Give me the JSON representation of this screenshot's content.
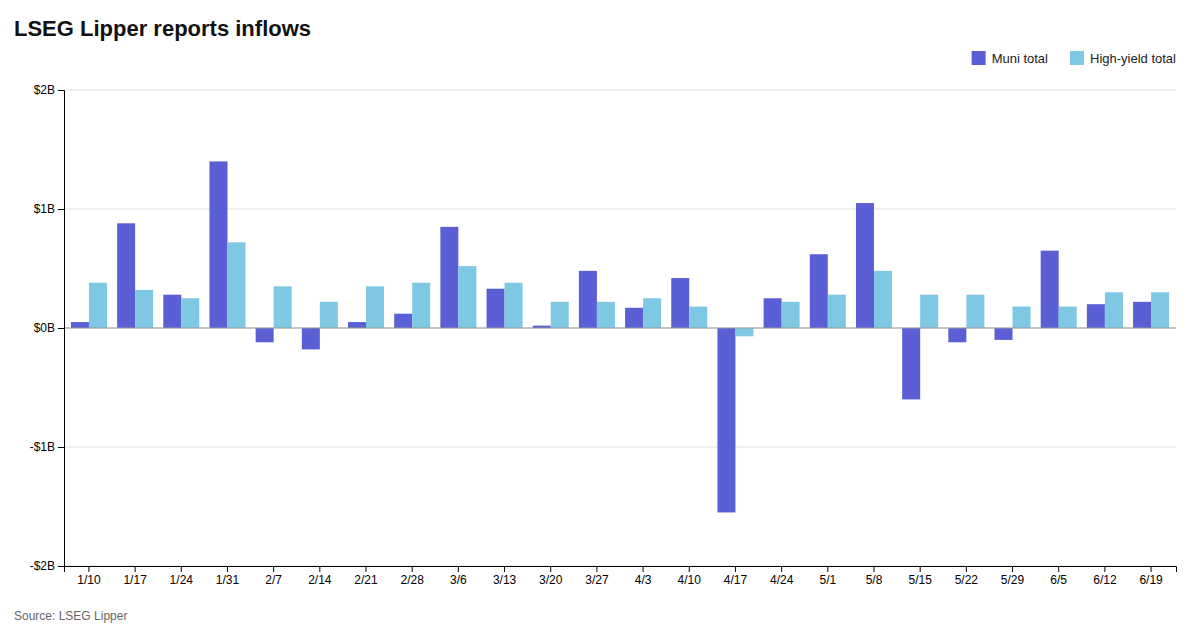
{
  "chart_data": {
    "type": "bar",
    "title": "LSEG Lipper reports inflows",
    "annotations": [
      "Source: LSEG Lipper"
    ],
    "categories": [
      "1/10",
      "1/17",
      "1/24",
      "1/31",
      "2/7",
      "2/14",
      "2/21",
      "2/28",
      "3/6",
      "3/13",
      "3/20",
      "3/27",
      "4/3",
      "4/10",
      "4/17",
      "4/24",
      "5/1",
      "5/8",
      "5/15",
      "5/22",
      "5/29",
      "6/5",
      "6/12",
      "6/19"
    ],
    "series": [
      {
        "name": "Muni total",
        "color": "#5B5FD6",
        "values": [
          0.05,
          0.88,
          0.28,
          1.4,
          -0.12,
          -0.18,
          0.05,
          0.12,
          0.85,
          0.33,
          0.02,
          0.48,
          0.17,
          0.42,
          -1.55,
          0.25,
          0.62,
          1.05,
          -0.6,
          -0.12,
          -0.1,
          0.65,
          0.2,
          0.22
        ]
      },
      {
        "name": "High-yield total",
        "color": "#7EC8E3",
        "values": [
          0.38,
          0.32,
          0.25,
          0.72,
          0.35,
          0.22,
          0.35,
          0.38,
          0.52,
          0.38,
          0.22,
          0.22,
          0.25,
          0.18,
          -0.07,
          0.22,
          0.28,
          0.48,
          0.28,
          0.28,
          0.18,
          0.18,
          0.3,
          0.3
        ]
      }
    ],
    "ylim": [
      -2.0,
      2.0
    ],
    "yticks": [
      {
        "value": -2.0,
        "label": "-$2B"
      },
      {
        "value": -1.0,
        "label": "-$1B"
      },
      {
        "value": 0.0,
        "label": "$0B"
      },
      {
        "value": 1.0,
        "label": "$1B"
      },
      {
        "value": 2.0,
        "label": "$2B"
      }
    ],
    "grid": true,
    "legend": "top-right"
  }
}
